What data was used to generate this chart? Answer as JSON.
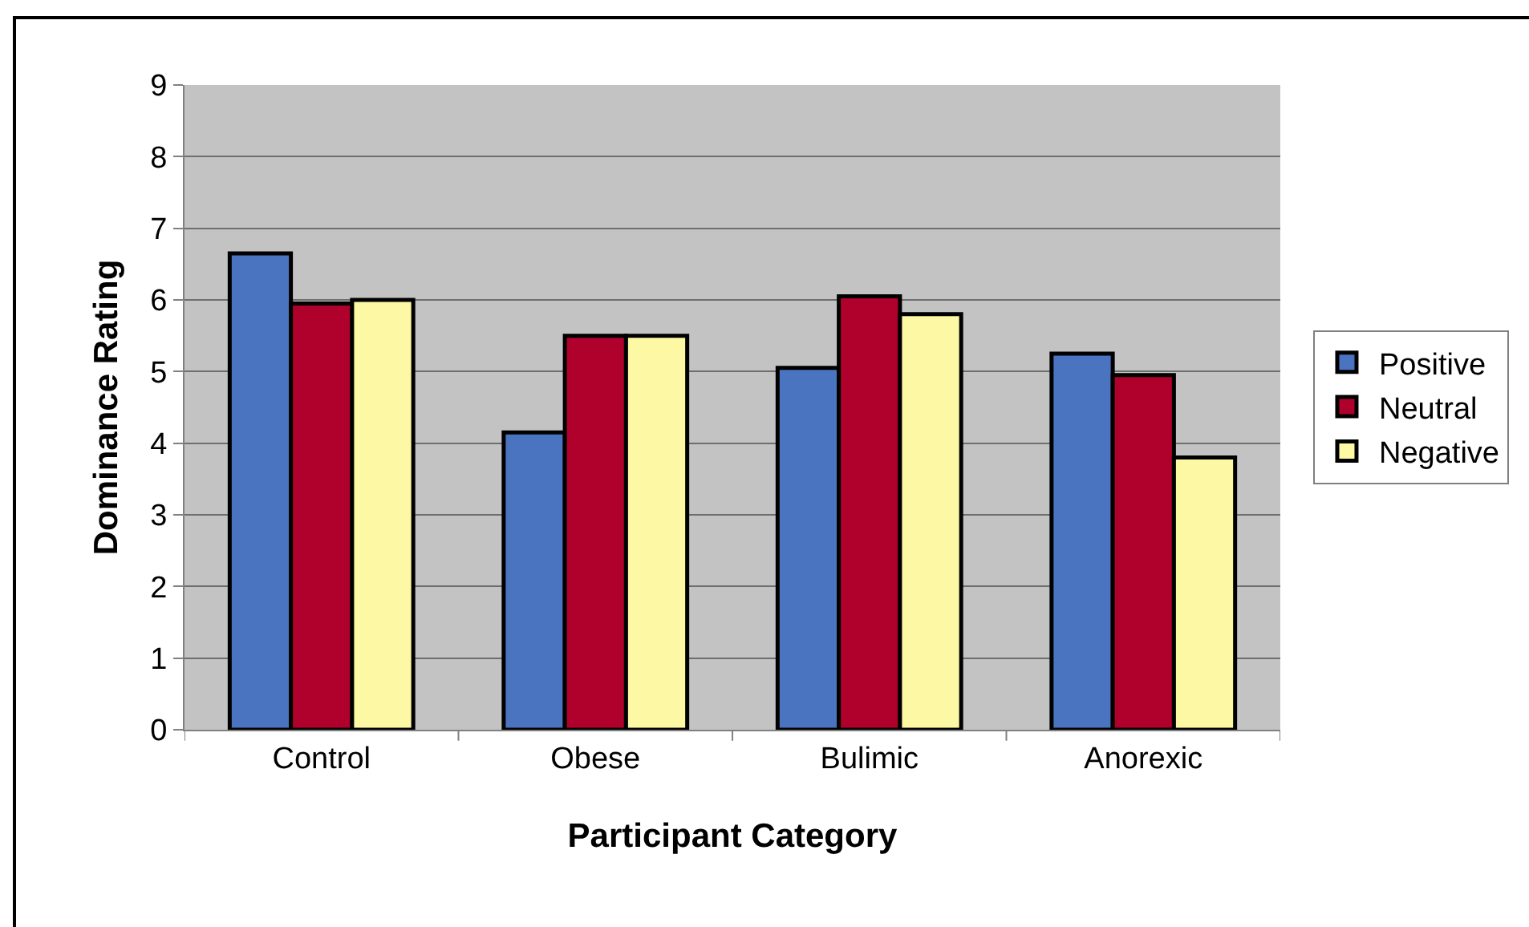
{
  "chart_data": {
    "type": "bar",
    "xlabel": "Participant Category",
    "ylabel": "Dominance Rating",
    "categories": [
      "Control",
      "Obese",
      "Bulimic",
      "Anorexic"
    ],
    "series": [
      {
        "name": "Positive",
        "color": "#4a74bf",
        "values": [
          6.65,
          4.15,
          5.05,
          5.25
        ]
      },
      {
        "name": "Neutral",
        "color": "#b0002c",
        "values": [
          5.95,
          5.5,
          6.05,
          4.95
        ]
      },
      {
        "name": "Negative",
        "color": "#fcf8a4",
        "values": [
          6.0,
          5.5,
          5.8,
          3.8
        ]
      }
    ],
    "ylim": [
      0,
      9
    ],
    "yticks": [
      0,
      1,
      2,
      3,
      4,
      5,
      6,
      7,
      8,
      9
    ],
    "grid": "y",
    "legend": "right"
  }
}
